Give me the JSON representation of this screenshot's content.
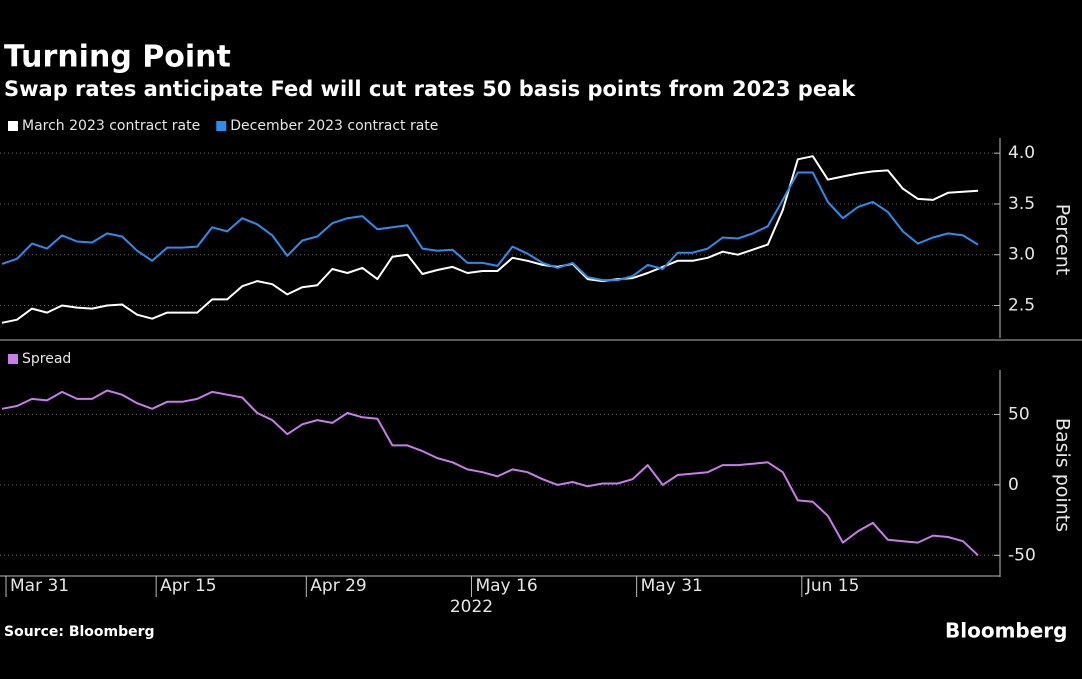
{
  "chart_data": [
    {
      "type": "line",
      "title": "Turning Point",
      "subtitle": "Swap rates anticipate Fed will cut rates 50 basis points from 2023 peak",
      "ylabel": "Percent",
      "ylim": [
        2.2,
        4.1
      ],
      "yticks": [
        2.5,
        {
          "value": 3,
          "label": "3.0"
        },
        3.5,
        {
          "value": 4,
          "label": "4.0"
        }
      ],
      "grid": true,
      "series": [
        {
          "name": "March 2023 contract rate",
          "color": "#ffffff",
          "values": [
            2.33,
            2.36,
            2.47,
            2.43,
            2.5,
            2.48,
            2.47,
            2.5,
            2.51,
            2.41,
            2.37,
            2.43,
            2.43,
            2.43,
            2.56,
            2.56,
            2.69,
            2.74,
            2.71,
            2.61,
            2.68,
            2.7,
            2.86,
            2.82,
            2.87,
            2.76,
            2.98,
            3.0,
            2.81,
            2.85,
            2.88,
            2.82,
            2.84,
            2.84,
            2.97,
            2.94,
            2.9,
            2.88,
            2.91,
            2.76,
            2.74,
            2.76,
            2.77,
            2.82,
            2.88,
            2.94,
            2.94,
            2.97,
            3.03,
            3.0,
            3.05,
            3.1,
            3.44,
            3.94,
            3.97,
            3.74,
            3.77,
            3.8,
            3.82,
            3.83,
            3.65,
            3.55,
            3.54,
            3.61,
            3.62,
            3.63
          ]
        },
        {
          "name": "December 2023 contract rate",
          "color": "#2b8ded",
          "values": [
            2.91,
            2.96,
            3.11,
            3.06,
            3.19,
            3.13,
            3.12,
            3.21,
            3.18,
            3.04,
            2.94,
            3.07,
            3.07,
            3.08,
            3.27,
            3.23,
            3.36,
            3.3,
            3.19,
            2.99,
            3.14,
            3.18,
            3.31,
            3.36,
            3.38,
            3.25,
            3.27,
            3.29,
            3.06,
            3.04,
            3.05,
            2.92,
            2.92,
            2.89,
            3.08,
            3.01,
            2.92,
            2.87,
            2.92,
            2.78,
            2.75,
            2.75,
            2.79,
            2.9,
            2.86,
            3.02,
            3.02,
            3.06,
            3.17,
            3.16,
            3.21,
            3.28,
            3.54,
            3.81,
            3.81,
            3.52,
            3.36,
            3.47,
            3.52,
            3.42,
            3.23,
            3.11,
            3.17,
            3.21,
            3.19,
            3.1
          ]
        }
      ]
    },
    {
      "type": "line",
      "ylabel": "Basis points",
      "ylim": [
        -64,
        78
      ],
      "yticks": [
        -50,
        0,
        50
      ],
      "grid": true,
      "categories": [
        "Mar 31",
        null,
        null,
        null,
        null,
        null,
        null,
        null,
        null,
        null,
        "Apr 15",
        null,
        null,
        null,
        null,
        null,
        null,
        null,
        null,
        null,
        "Apr 29",
        null,
        null,
        null,
        null,
        null,
        null,
        null,
        null,
        null,
        null,
        "May 16",
        null,
        null,
        null,
        null,
        null,
        null,
        null,
        null,
        null,
        null,
        "May 31",
        null,
        null,
        null,
        null,
        null,
        null,
        null,
        null,
        null,
        null,
        "Jun 15",
        null,
        null,
        null,
        null,
        null,
        null,
        null,
        null,
        null,
        null,
        null,
        null
      ],
      "x_year_label": "2022",
      "series": [
        {
          "name": "Spread",
          "color": "#c77dea",
          "values": [
            54,
            56,
            61,
            60,
            66,
            61,
            61,
            67,
            64,
            58,
            54,
            59,
            59,
            61,
            66,
            64,
            62,
            51,
            46,
            36,
            43,
            46,
            44,
            51,
            48,
            47,
            28,
            28,
            24,
            19,
            16,
            11,
            9,
            6,
            11,
            9,
            4,
            0,
            2,
            -1,
            1,
            1,
            4,
            14,
            0,
            7,
            8,
            9,
            14,
            14,
            15,
            16,
            9,
            -11,
            -12,
            -22,
            -41,
            -33,
            -27,
            -39,
            -40,
            -41,
            -36,
            -37,
            -40,
            -50
          ]
        }
      ]
    }
  ],
  "source": "Source: Bloomberg",
  "logo": "Bloomberg"
}
